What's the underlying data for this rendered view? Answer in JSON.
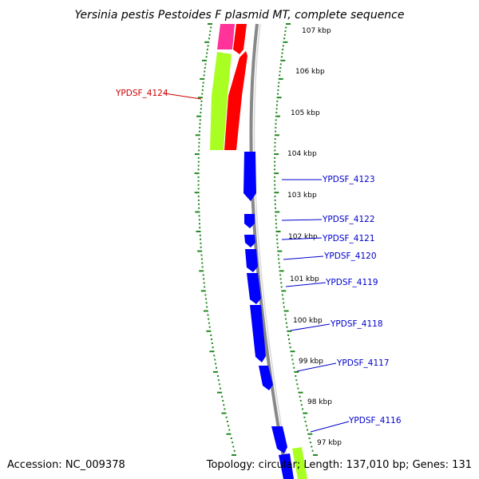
{
  "title": "Yersinia pestis Pestoides F plasmid MT, complete sequence",
  "footer": {
    "accession": "Accession: NC_009378",
    "summary": "Topology: circular; Length: 137,010 bp; Genes: 131"
  },
  "colors": {
    "gene_reverse": "#0000ff",
    "gene_forward_red": "#ff0000",
    "gene_forward_pink": "#ff3399",
    "gene_green": "#aaff22",
    "backbone": "#888888",
    "tick_ruler": "#228822",
    "label_reverse": "#0000cc",
    "label_forward": "#cc0000"
  },
  "tick_labels": [
    "107 kbp",
    "106 kbp",
    "105 kbp",
    "104 kbp",
    "103 kbp",
    "102 kbp",
    "101 kbp",
    "100 kbp",
    "99 kbp",
    "98 kbp",
    "97 kbp"
  ],
  "gene_labels": [
    {
      "text": "YPDSF_4124",
      "strand": "forward"
    },
    {
      "text": "YPDSF_4123",
      "strand": "reverse"
    },
    {
      "text": "YPDSF_4122",
      "strand": "reverse"
    },
    {
      "text": "YPDSF_4121",
      "strand": "reverse"
    },
    {
      "text": "YPDSF_4120",
      "strand": "reverse"
    },
    {
      "text": "YPDSF_4119",
      "strand": "reverse"
    },
    {
      "text": "YPDSF_4118",
      "strand": "reverse"
    },
    {
      "text": "YPDSF_4117",
      "strand": "reverse"
    },
    {
      "text": "YPDSF_4116",
      "strand": "reverse"
    }
  ]
}
